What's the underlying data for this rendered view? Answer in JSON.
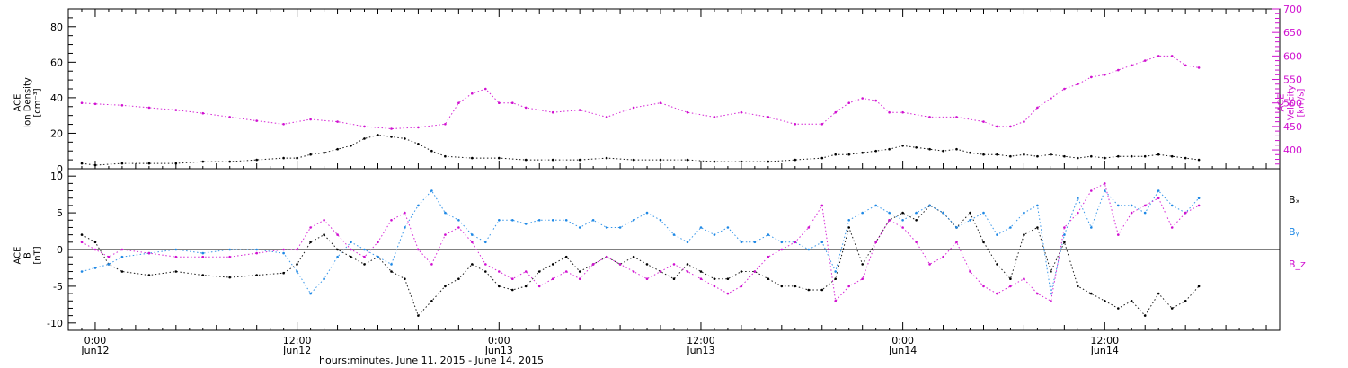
{
  "figure": {
    "xlabel": "hours:minutes, June 11, 2015 - June 14, 2015"
  },
  "chart_data": [
    {
      "type": "scatter",
      "panel": "top",
      "ylabel": [
        "ACE",
        "Ion Density",
        "[cm⁻³]"
      ],
      "y2label": [
        "ACE",
        "Velocity",
        "[km/s]"
      ],
      "ylim": [
        0,
        90
      ],
      "yticks": [
        0,
        20,
        40,
        60,
        80
      ],
      "y2lim": [
        360,
        700
      ],
      "y2ticks": [
        400,
        450,
        500,
        550,
        600,
        650,
        700
      ],
      "xlim": [
        -2,
        88
      ],
      "xticks": [
        {
          "value": 0,
          "line1": "0:00",
          "line2": "Jun12"
        },
        {
          "value": 15,
          "line1": "12:00",
          "line2": "Jun12"
        },
        {
          "value": 30,
          "line1": "0:00",
          "line2": "Jun13"
        },
        {
          "value": 45,
          "line1": "12:00",
          "line2": "Jun13"
        },
        {
          "value": 60,
          "line1": "0:00",
          "line2": "Jun14"
        },
        {
          "value": 75,
          "line1": "12:00",
          "line2": "Jun14"
        }
      ],
      "series": [
        {
          "axis": "left",
          "color": "#000000",
          "x": [
            -1,
            0,
            2,
            4,
            6,
            8,
            10,
            12,
            14,
            15,
            16,
            17,
            18,
            19,
            20,
            21,
            22,
            23,
            24,
            25,
            26,
            28,
            30,
            32,
            34,
            36,
            38,
            40,
            42,
            44,
            46,
            48,
            50,
            52,
            54,
            55,
            56,
            57,
            58,
            59,
            60,
            61,
            62,
            63,
            64,
            65,
            66,
            67,
            68,
            69,
            70,
            71,
            72,
            73,
            74,
            75,
            76,
            77,
            78,
            79,
            80,
            81,
            82
          ],
          "y": [
            3,
            2,
            3,
            3,
            3,
            4,
            4,
            5,
            6,
            6,
            8,
            9,
            11,
            13,
            17,
            19,
            18,
            17,
            14,
            10,
            7,
            6,
            6,
            5,
            5,
            5,
            6,
            5,
            5,
            5,
            4,
            4,
            4,
            5,
            6,
            8,
            8,
            9,
            10,
            11,
            13,
            12,
            11,
            10,
            11,
            9,
            8,
            8,
            7,
            8,
            7,
            8,
            7,
            6,
            7,
            6,
            7,
            7,
            7,
            8,
            7,
            6,
            5
          ]
        },
        {
          "axis": "right",
          "color": "#d010d0",
          "x": [
            -1,
            0,
            2,
            4,
            6,
            8,
            10,
            12,
            14,
            16,
            18,
            20,
            22,
            24,
            26,
            27,
            28,
            29,
            30,
            31,
            32,
            34,
            36,
            38,
            40,
            42,
            44,
            46,
            48,
            50,
            52,
            54,
            55,
            56,
            57,
            58,
            59,
            60,
            62,
            64,
            66,
            67,
            68,
            69,
            70,
            71,
            72,
            73,
            74,
            75,
            76,
            77,
            78,
            79,
            80,
            81,
            82
          ],
          "y": [
            500,
            498,
            495,
            490,
            485,
            478,
            470,
            462,
            455,
            465,
            460,
            450,
            445,
            448,
            455,
            500,
            520,
            530,
            500,
            500,
            490,
            480,
            485,
            470,
            490,
            500,
            480,
            470,
            480,
            470,
            455,
            455,
            480,
            500,
            510,
            505,
            480,
            480,
            470,
            470,
            460,
            450,
            450,
            460,
            490,
            510,
            530,
            540,
            555,
            560,
            570,
            580,
            590,
            600,
            600,
            580,
            575
          ]
        }
      ]
    },
    {
      "type": "scatter",
      "panel": "bottom",
      "ylabel": [
        "ACE",
        "B",
        "[nT]"
      ],
      "ylim": [
        -11,
        11
      ],
      "yticks": [
        -10,
        -5,
        0,
        5,
        10
      ],
      "xlim": [
        -2,
        88
      ],
      "legend": [
        "Bₓ",
        "Bᵧ",
        "B_z"
      ],
      "series": [
        {
          "name": "Bₓ",
          "color": "#000000",
          "x": [
            -1,
            0,
            1,
            2,
            4,
            6,
            8,
            10,
            12,
            14,
            15,
            16,
            17,
            18,
            19,
            20,
            21,
            22,
            23,
            24,
            25,
            26,
            27,
            28,
            29,
            30,
            31,
            32,
            33,
            34,
            35,
            36,
            37,
            38,
            39,
            40,
            41,
            42,
            43,
            44,
            45,
            46,
            47,
            48,
            49,
            50,
            51,
            52,
            53,
            54,
            55,
            56,
            57,
            58,
            59,
            60,
            61,
            62,
            63,
            64,
            65,
            66,
            67,
            68,
            69,
            70,
            71,
            72,
            73,
            74,
            75,
            76,
            77,
            78,
            79,
            80,
            81,
            82
          ],
          "y": [
            2,
            1,
            -2,
            -3,
            -3.5,
            -3,
            -3.5,
            -3.8,
            -3.5,
            -3.2,
            -2,
            1,
            2,
            0,
            -1,
            -2,
            -1,
            -3,
            -4,
            -9,
            -7,
            -5,
            -4,
            -2,
            -3,
            -5,
            -5.5,
            -5,
            -3,
            -2,
            -1,
            -3,
            -2,
            -1,
            -2,
            -1,
            -2,
            -3,
            -4,
            -2,
            -3,
            -4,
            -4,
            -3,
            -3,
            -4,
            -5,
            -5,
            -5.5,
            -5.5,
            -4,
            3,
            -2,
            1,
            4,
            5,
            4,
            6,
            5,
            3,
            5,
            1,
            -2,
            -4,
            2,
            3,
            -3,
            1,
            -5,
            -6,
            -7,
            -8,
            -7,
            -9,
            -6,
            -8,
            -7,
            -5
          ]
        },
        {
          "name": "Bᵧ",
          "color": "#1e88e5",
          "x": [
            -1,
            0,
            1,
            2,
            4,
            6,
            8,
            10,
            12,
            14,
            15,
            16,
            17,
            18,
            19,
            20,
            21,
            22,
            23,
            24,
            25,
            26,
            27,
            28,
            29,
            30,
            31,
            32,
            33,
            34,
            35,
            36,
            37,
            38,
            39,
            40,
            41,
            42,
            43,
            44,
            45,
            46,
            47,
            48,
            49,
            50,
            51,
            52,
            53,
            54,
            55,
            56,
            57,
            58,
            59,
            60,
            61,
            62,
            63,
            64,
            65,
            66,
            67,
            68,
            69,
            70,
            71,
            72,
            73,
            74,
            75,
            76,
            77,
            78,
            79,
            80,
            81,
            82
          ],
          "y": [
            -3,
            -2.5,
            -2,
            -1,
            -0.5,
            0,
            -0.5,
            0,
            0,
            -0.5,
            -3,
            -6,
            -4,
            -1,
            1,
            0,
            -1,
            -2,
            3,
            6,
            8,
            5,
            4,
            2,
            1,
            4,
            4,
            3.5,
            4,
            4,
            4,
            3,
            4,
            3,
            3,
            4,
            5,
            4,
            2,
            1,
            3,
            2,
            3,
            1,
            1,
            2,
            1,
            1,
            0,
            1,
            -3,
            4,
            5,
            6,
            5,
            4,
            5,
            6,
            5,
            3,
            4,
            5,
            2,
            3,
            5,
            6,
            -6,
            2,
            7,
            3,
            8,
            6,
            6,
            5,
            8,
            6,
            5,
            7
          ]
        },
        {
          "name": "B_z",
          "color": "#d010d0",
          "x": [
            -1,
            0,
            1,
            2,
            4,
            6,
            8,
            10,
            12,
            14,
            15,
            16,
            17,
            18,
            19,
            20,
            21,
            22,
            23,
            24,
            25,
            26,
            27,
            28,
            29,
            30,
            31,
            32,
            33,
            34,
            35,
            36,
            37,
            38,
            39,
            40,
            41,
            42,
            43,
            44,
            45,
            46,
            47,
            48,
            49,
            50,
            51,
            52,
            53,
            54,
            55,
            56,
            57,
            58,
            59,
            60,
            61,
            62,
            63,
            64,
            65,
            66,
            67,
            68,
            69,
            70,
            71,
            72,
            73,
            74,
            75,
            76,
            77,
            78,
            79,
            80,
            81,
            82
          ],
          "y": [
            1,
            0,
            -1,
            0,
            -0.5,
            -1,
            -1,
            -1,
            -0.5,
            0,
            0,
            3,
            4,
            2,
            0,
            -1,
            1,
            4,
            5,
            0,
            -2,
            2,
            3,
            1,
            -2,
            -3,
            -4,
            -3,
            -5,
            -4,
            -3,
            -4,
            -2,
            -1,
            -2,
            -3,
            -4,
            -3,
            -2,
            -3,
            -4,
            -5,
            -6,
            -5,
            -3,
            -1,
            0,
            1,
            3,
            6,
            -7,
            -5,
            -4,
            1,
            4,
            3,
            1,
            -2,
            -1,
            1,
            -3,
            -5,
            -6,
            -5,
            -4,
            -6,
            -7,
            3,
            5,
            8,
            9,
            2,
            5,
            6,
            7,
            3,
            5,
            6
          ]
        }
      ]
    }
  ]
}
